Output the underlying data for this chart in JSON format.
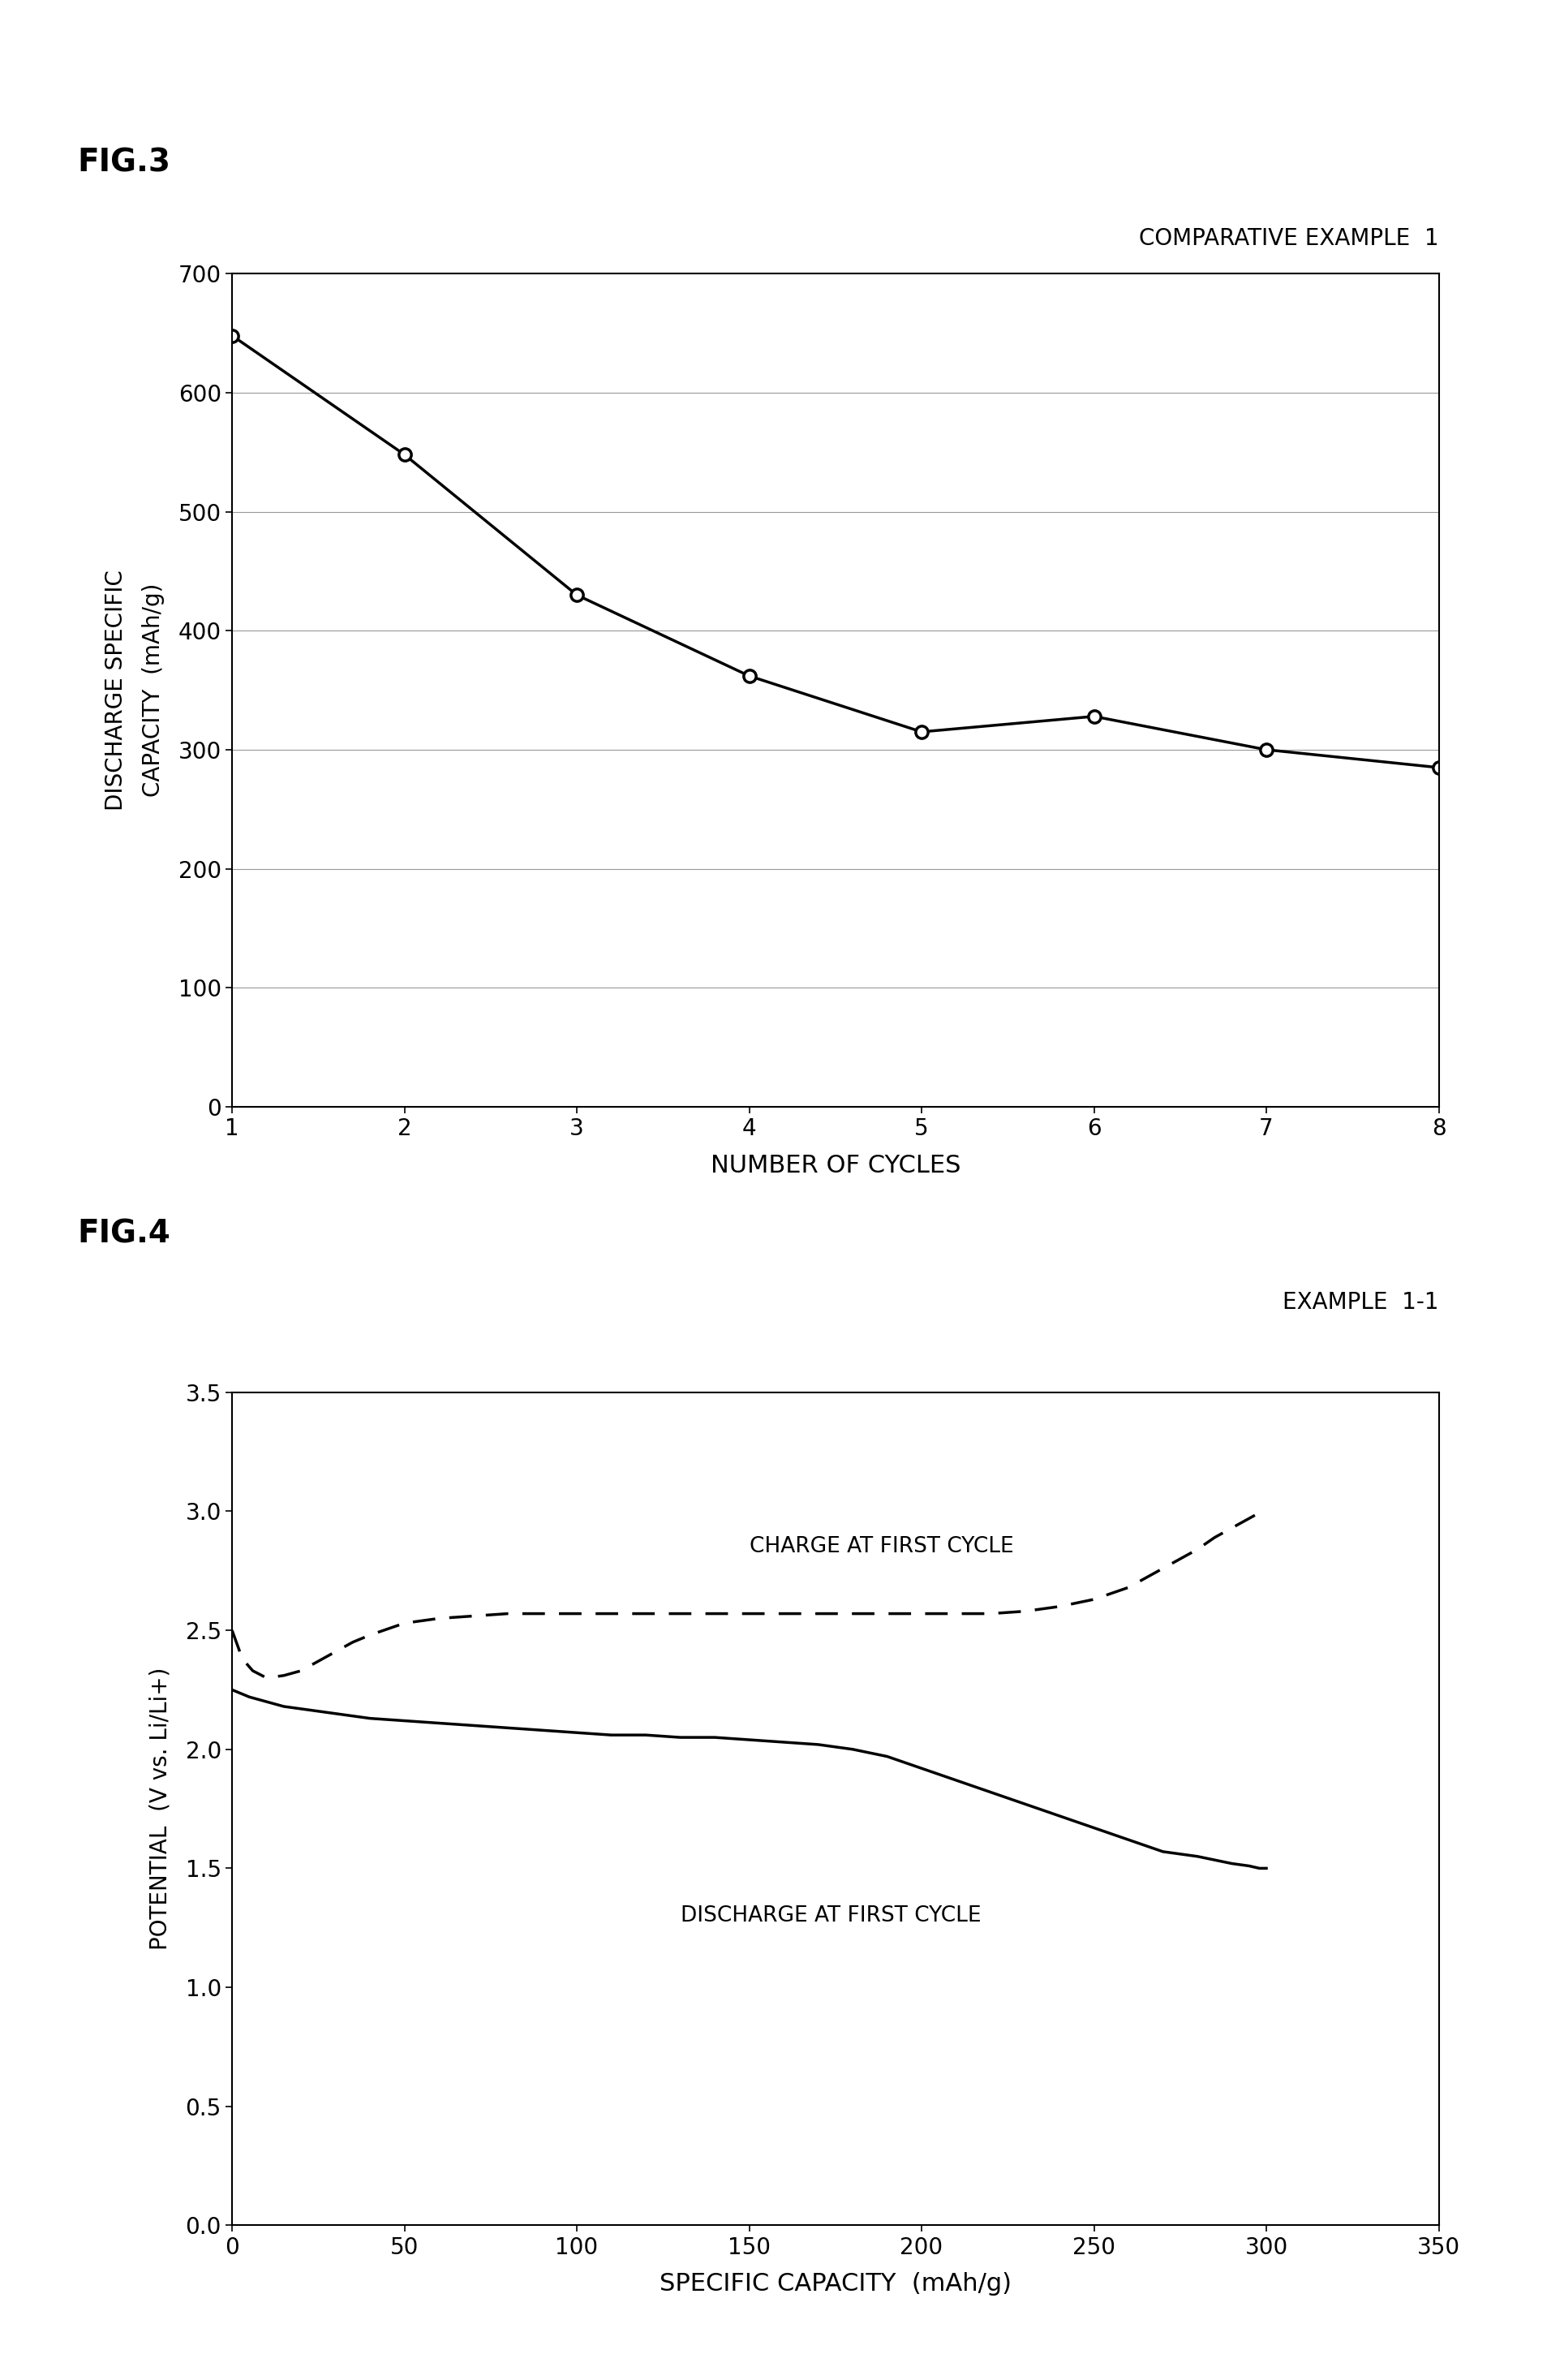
{
  "fig3": {
    "title": "FIG.3",
    "subtitle": "COMPARATIVE EXAMPLE  1",
    "xlabel": "NUMBER OF CYCLES",
    "ylabel_line1": "DISCHARGE SPECIFIC",
    "ylabel_line2": "CAPACITY  (mAh/g)",
    "x": [
      1,
      2,
      3,
      4,
      5,
      6,
      7,
      8
    ],
    "y": [
      648,
      548,
      430,
      362,
      315,
      328,
      300,
      285
    ],
    "xlim": [
      1,
      8
    ],
    "ylim": [
      0,
      700
    ],
    "yticks": [
      0,
      100,
      200,
      300,
      400,
      500,
      600,
      700
    ],
    "xticks": [
      1,
      2,
      3,
      4,
      5,
      6,
      7,
      8
    ]
  },
  "fig4": {
    "title": "FIG.4",
    "subtitle": "EXAMPLE  1-1",
    "xlabel": "SPECIFIC CAPACITY  (mAh/g)",
    "ylabel": "POTENTIAL  (V vs. Li/Li+)",
    "xlim": [
      0,
      350
    ],
    "ylim": [
      0,
      3.5
    ],
    "yticks": [
      0,
      0.5,
      1.0,
      1.5,
      2.0,
      2.5,
      3.0,
      3.5
    ],
    "xticks": [
      0,
      50,
      100,
      150,
      200,
      250,
      300,
      350
    ],
    "charge_label": "CHARGE AT FIRST CYCLE",
    "discharge_label": "DISCHARGE AT FIRST CYCLE",
    "charge_x": [
      0,
      3,
      6,
      10,
      15,
      20,
      25,
      30,
      35,
      40,
      50,
      60,
      70,
      80,
      90,
      100,
      110,
      120,
      130,
      140,
      150,
      160,
      170,
      180,
      190,
      200,
      210,
      220,
      230,
      240,
      250,
      260,
      270,
      280,
      285,
      290,
      295,
      300
    ],
    "charge_y": [
      2.5,
      2.38,
      2.33,
      2.3,
      2.31,
      2.33,
      2.37,
      2.41,
      2.45,
      2.48,
      2.53,
      2.55,
      2.56,
      2.57,
      2.57,
      2.57,
      2.57,
      2.57,
      2.57,
      2.57,
      2.57,
      2.57,
      2.57,
      2.57,
      2.57,
      2.57,
      2.57,
      2.57,
      2.58,
      2.6,
      2.63,
      2.68,
      2.76,
      2.84,
      2.89,
      2.93,
      2.97,
      3.01
    ],
    "discharge_x": [
      0,
      5,
      10,
      15,
      20,
      25,
      30,
      40,
      50,
      60,
      70,
      80,
      90,
      100,
      110,
      120,
      130,
      140,
      150,
      160,
      170,
      180,
      190,
      200,
      210,
      220,
      230,
      240,
      250,
      260,
      270,
      280,
      290,
      295,
      298,
      300
    ],
    "discharge_y": [
      2.25,
      2.22,
      2.2,
      2.18,
      2.17,
      2.16,
      2.15,
      2.13,
      2.12,
      2.11,
      2.1,
      2.09,
      2.08,
      2.07,
      2.06,
      2.06,
      2.05,
      2.05,
      2.04,
      2.03,
      2.02,
      2.0,
      1.97,
      1.92,
      1.87,
      1.82,
      1.77,
      1.72,
      1.67,
      1.62,
      1.57,
      1.55,
      1.52,
      1.51,
      1.5,
      1.5
    ]
  },
  "background_color": "#ffffff",
  "line_color": "#000000"
}
